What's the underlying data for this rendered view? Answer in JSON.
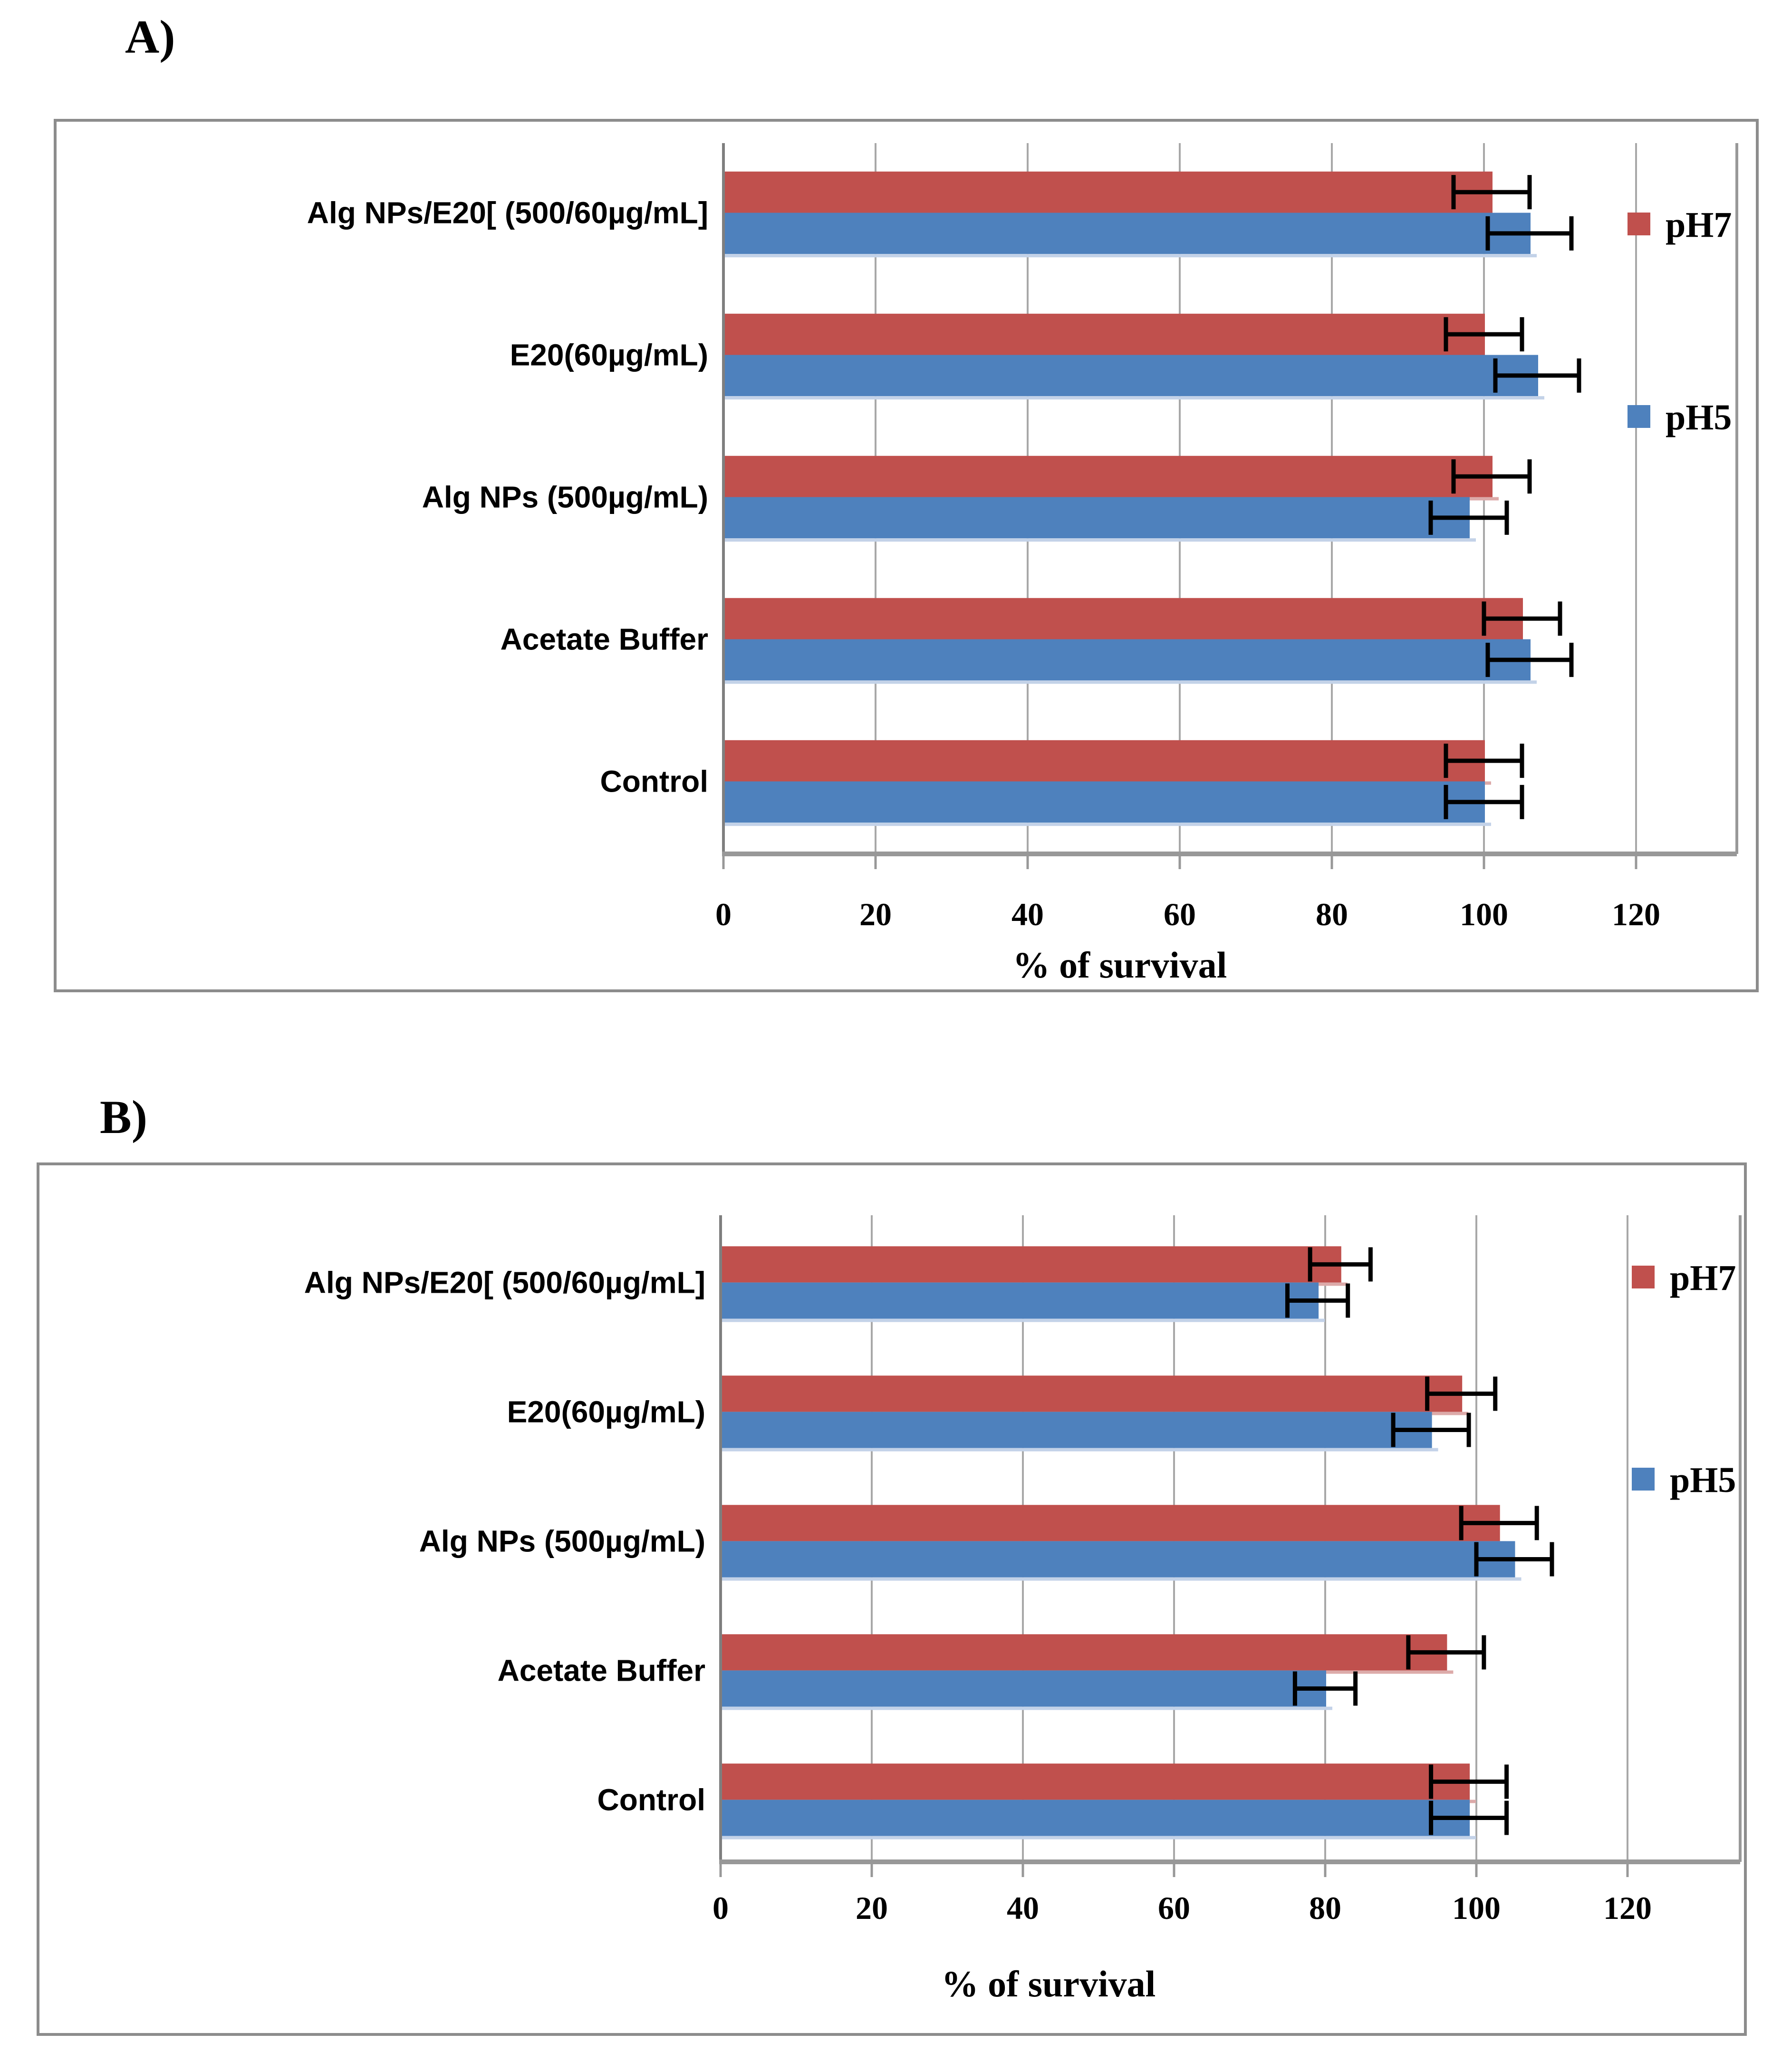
{
  "page": {
    "background": "#ffffff"
  },
  "panels": [
    {
      "title": "A)",
      "chart_data": {
        "type": "bar",
        "orientation": "horizontal",
        "title": "",
        "xlabel": "% of survival",
        "ylabel": "",
        "xlim": [
          0,
          120
        ],
        "xticks": [
          0,
          20,
          40,
          60,
          80,
          100,
          120
        ],
        "grid": true,
        "legend_position": "right",
        "categories": [
          "Alg NPs/E20[ (500/60µg/mL]",
          "E20(60µg/mL)",
          "Alg NPs (500µg/mL)",
          "Acetate Buffer",
          "Control"
        ],
        "series": [
          {
            "name": "pH7",
            "color": "#c0504d",
            "shadow": "#dcaaa9",
            "values": [
              101,
              100,
              101,
              105,
              100
            ],
            "errors": [
              5,
              5,
              5,
              5,
              5
            ]
          },
          {
            "name": "pH5",
            "color": "#4e81bd",
            "shadow": "#c3d2e8",
            "values": [
              106,
              107,
              98,
              106,
              100
            ],
            "errors": [
              5.5,
              5.5,
              5,
              5.5,
              5
            ]
          }
        ]
      }
    },
    {
      "title": "B)",
      "chart_data": {
        "type": "bar",
        "orientation": "horizontal",
        "title": "",
        "xlabel": "% of survival",
        "ylabel": "",
        "xlim": [
          0,
          120
        ],
        "xticks": [
          0,
          20,
          40,
          60,
          80,
          100,
          120
        ],
        "grid": true,
        "legend_position": "right",
        "categories": [
          "Alg NPs/E20[ (500/60µg/mL]",
          "E20(60µg/mL)",
          "Alg NPs (500µg/mL)",
          "Acetate Buffer",
          "Control"
        ],
        "series": [
          {
            "name": "pH7",
            "color": "#c0504d",
            "shadow": "#dcaaa9",
            "values": [
              82,
              98,
              103,
              96,
              99
            ],
            "errors": [
              4,
              4.5,
              5,
              5,
              5
            ]
          },
          {
            "name": "pH5",
            "color": "#4e81bd",
            "shadow": "#c3d2e8",
            "values": [
              79,
              94,
              105,
              80,
              99
            ],
            "errors": [
              4,
              5,
              5,
              4,
              5
            ]
          }
        ]
      }
    }
  ],
  "style": {
    "grid_color": "#a8a8a8",
    "axis_color": "#989898",
    "value_axis_color": "#7f7f7f",
    "error_color": "#000000",
    "text_color": "#000000"
  }
}
